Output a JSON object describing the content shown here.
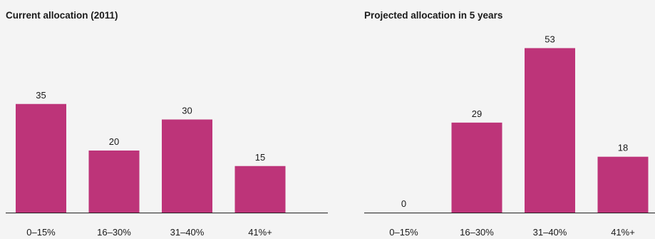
{
  "chart_data": [
    {
      "type": "bar",
      "title": "Current allocation (2011)",
      "categories": [
        "0–15%",
        "16–30%",
        "31–40%",
        "41%+"
      ],
      "values": [
        35,
        20,
        30,
        15
      ],
      "data_labels": [
        "35",
        "20",
        "30",
        "15"
      ],
      "xlabel": "",
      "ylabel": "",
      "ylim": [
        0,
        60
      ],
      "grid": false,
      "legend": "none",
      "bar_color": "#bd3479"
    },
    {
      "type": "bar",
      "title": "Projected allocation in 5 years",
      "categories": [
        "0–15%",
        "16–30%",
        "31–40%",
        "41%+"
      ],
      "values": [
        0,
        29,
        53,
        18
      ],
      "data_labels": [
        "0",
        "29",
        "53",
        "18"
      ],
      "xlabel": "",
      "ylabel": "",
      "ylim": [
        0,
        60
      ],
      "grid": false,
      "legend": "none",
      "bar_color": "#bd3479"
    }
  ]
}
